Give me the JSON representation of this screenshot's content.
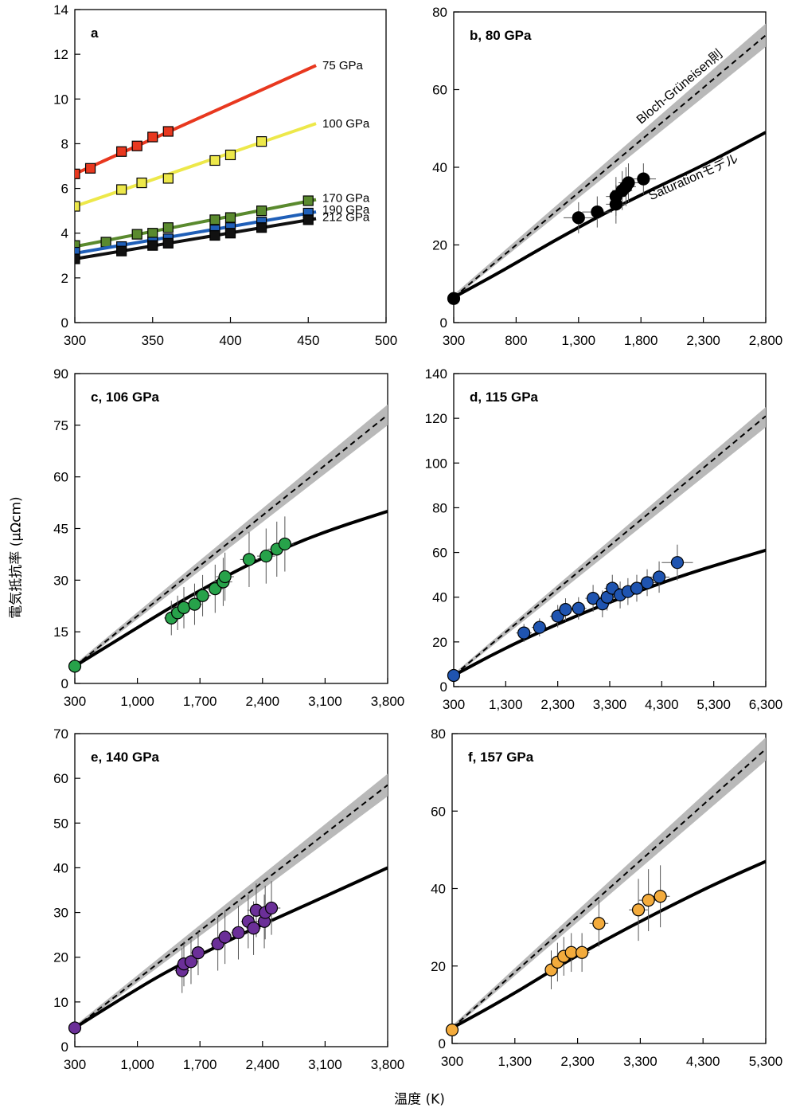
{
  "labels": {
    "y_axis": "電気抵抗率 (μΩcm)",
    "x_axis": "温度 (K)",
    "bloch_model": "Bloch-Grüneisen則",
    "saturation_model": "Saturationモデル"
  },
  "colors": {
    "p75": "#e8381f",
    "p100": "#ede84a",
    "p170": "#5a8a2e",
    "p190": "#1f5fb8",
    "p212": "#111111",
    "black": "#000000",
    "green": "#27a24a",
    "blue": "#1f54b0",
    "purple": "#6b2f98",
    "orange": "#f3ab3c",
    "band": "#b9b9b9"
  },
  "chart_data": [
    {
      "id": "a",
      "title": "a",
      "type": "scatter",
      "xlim": [
        300,
        500
      ],
      "ylim": [
        0,
        14
      ],
      "xticks": [
        "300",
        "350",
        "400",
        "450",
        "500"
      ],
      "yticks": [
        "0",
        "2",
        "4",
        "6",
        "8",
        "10",
        "12",
        "14"
      ],
      "series": [
        {
          "name": "75 GPa",
          "color": "p75",
          "marker": "square",
          "line": [
            [
              300,
              6.65
            ],
            [
              455,
              11.5
            ]
          ],
          "points": [
            [
              300,
              6.65
            ],
            [
              310,
              6.9
            ],
            [
              330,
              7.65
            ],
            [
              340,
              7.9
            ],
            [
              350,
              8.3
            ],
            [
              360,
              8.55
            ]
          ]
        },
        {
          "name": "100 GPa",
          "color": "p100",
          "marker": "square",
          "line": [
            [
              300,
              5.2
            ],
            [
              455,
              8.9
            ]
          ],
          "points": [
            [
              300,
              5.2
            ],
            [
              330,
              5.95
            ],
            [
              343,
              6.25
            ],
            [
              360,
              6.45
            ],
            [
              390,
              7.25
            ],
            [
              400,
              7.5
            ],
            [
              420,
              8.1
            ]
          ]
        },
        {
          "name": "170 GPa",
          "color": "p170",
          "marker": "square",
          "line": [
            [
              300,
              3.4
            ],
            [
              455,
              5.5
            ]
          ],
          "points": [
            [
              300,
              3.45
            ],
            [
              320,
              3.6
            ],
            [
              340,
              3.95
            ],
            [
              350,
              4.0
            ],
            [
              360,
              4.25
            ],
            [
              390,
              4.6
            ],
            [
              400,
              4.7
            ],
            [
              420,
              5.0
            ],
            [
              450,
              5.45
            ]
          ]
        },
        {
          "name": "190 GPa",
          "color": "p190",
          "marker": "square",
          "line": [
            [
              300,
              3.1
            ],
            [
              455,
              4.95
            ]
          ],
          "points": [
            [
              300,
              3.15
            ],
            [
              330,
              3.4
            ],
            [
              350,
              3.6
            ],
            [
              360,
              3.75
            ],
            [
              390,
              4.15
            ],
            [
              400,
              4.25
            ],
            [
              420,
              4.5
            ],
            [
              450,
              4.9
            ]
          ]
        },
        {
          "name": "212 GPa",
          "color": "p212",
          "marker": "square",
          "line": [
            [
              300,
              2.85
            ],
            [
              455,
              4.65
            ]
          ],
          "points": [
            [
              300,
              2.85
            ],
            [
              330,
              3.2
            ],
            [
              350,
              3.45
            ],
            [
              360,
              3.55
            ],
            [
              390,
              3.9
            ],
            [
              400,
              4.0
            ],
            [
              420,
              4.25
            ],
            [
              450,
              4.6
            ]
          ]
        }
      ]
    },
    {
      "id": "b",
      "title": "b, 80 GPa",
      "type": "scatter",
      "xlim": [
        300,
        2800
      ],
      "ylim": [
        0,
        80
      ],
      "xticks": [
        "300",
        "800",
        "1,300",
        "1,800",
        "2,300",
        "2,800"
      ],
      "yticks": [
        "0",
        "20",
        "40",
        "60",
        "80"
      ],
      "color": "black",
      "bloch": [
        [
          300,
          6.5
        ],
        [
          2800,
          74
        ]
      ],
      "band_upper": [
        [
          300,
          7.2
        ],
        [
          2800,
          77
        ]
      ],
      "band_lower": [
        [
          300,
          6.2
        ],
        [
          2800,
          71
        ]
      ],
      "saturation": [
        [
          300,
          6.5
        ],
        [
          700,
          13.5
        ],
        [
          1100,
          21
        ],
        [
          1500,
          28
        ],
        [
          1900,
          34.5
        ],
        [
          2300,
          40.5
        ],
        [
          2800,
          49
        ]
      ],
      "points": [
        {
          "x": 300,
          "y": 6.2,
          "ex": 0,
          "ey": 0
        },
        {
          "x": 1300,
          "y": 27,
          "ex": 120,
          "ey": 4
        },
        {
          "x": 1450,
          "y": 28.5,
          "ex": 120,
          "ey": 4
        },
        {
          "x": 1600,
          "y": 30.5,
          "ex": 80,
          "ey": 5
        },
        {
          "x": 1600,
          "y": 32.5,
          "ex": 80,
          "ey": 5
        },
        {
          "x": 1650,
          "y": 34,
          "ex": 80,
          "ey": 5
        },
        {
          "x": 1680,
          "y": 35,
          "ex": 80,
          "ey": 5
        },
        {
          "x": 1700,
          "y": 36,
          "ex": 80,
          "ey": 5
        },
        {
          "x": 1820,
          "y": 37,
          "ex": 100,
          "ey": 4
        }
      ]
    },
    {
      "id": "c",
      "title": "c, 106 GPa",
      "type": "scatter",
      "xlim": [
        300,
        3800
      ],
      "ylim": [
        0,
        90
      ],
      "xticks": [
        "300",
        "1,000",
        "1,700",
        "2,400",
        "3,100",
        "3,800"
      ],
      "yticks": [
        "0",
        "15",
        "30",
        "45",
        "60",
        "75",
        "90"
      ],
      "color": "green",
      "bloch": [
        [
          300,
          5
        ],
        [
          3800,
          78
        ]
      ],
      "band_upper": [
        [
          300,
          5.6
        ],
        [
          3800,
          81
        ]
      ],
      "band_lower": [
        [
          300,
          4.6
        ],
        [
          3800,
          75
        ]
      ],
      "saturation": [
        [
          300,
          5
        ],
        [
          800,
          13
        ],
        [
          1300,
          21
        ],
        [
          1700,
          27
        ],
        [
          2200,
          34
        ],
        [
          2700,
          40
        ],
        [
          3200,
          45
        ],
        [
          3800,
          50
        ]
      ],
      "points": [
        {
          "x": 300,
          "y": 5,
          "ex": 0,
          "ey": 0
        },
        {
          "x": 1380,
          "y": 19,
          "ex": 80,
          "ey": 5
        },
        {
          "x": 1450,
          "y": 20.5,
          "ex": 80,
          "ey": 5
        },
        {
          "x": 1520,
          "y": 22,
          "ex": 80,
          "ey": 6
        },
        {
          "x": 1640,
          "y": 23,
          "ex": 80,
          "ey": 6
        },
        {
          "x": 1730,
          "y": 25.5,
          "ex": 90,
          "ey": 6
        },
        {
          "x": 1870,
          "y": 27.5,
          "ex": 90,
          "ey": 7
        },
        {
          "x": 1960,
          "y": 29.5,
          "ex": 100,
          "ey": 7
        },
        {
          "x": 1980,
          "y": 31,
          "ex": 100,
          "ey": 7
        },
        {
          "x": 2250,
          "y": 36,
          "ex": 100,
          "ey": 8
        },
        {
          "x": 2440,
          "y": 37,
          "ex": 100,
          "ey": 8
        },
        {
          "x": 2560,
          "y": 39,
          "ex": 100,
          "ey": 8
        },
        {
          "x": 2650,
          "y": 40.5,
          "ex": 100,
          "ey": 8
        }
      ]
    },
    {
      "id": "d",
      "title": "d, 115 GPa",
      "type": "scatter",
      "xlim": [
        300,
        6300
      ],
      "ylim": [
        0,
        140
      ],
      "xticks": [
        "300",
        "1,300",
        "2,300",
        "3,300",
        "4,300",
        "5,300",
        "6,300"
      ],
      "yticks": [
        "0",
        "20",
        "40",
        "60",
        "80",
        "100",
        "120",
        "140"
      ],
      "color": "blue",
      "bloch": [
        [
          300,
          5
        ],
        [
          6300,
          121
        ]
      ],
      "band_upper": [
        [
          300,
          5.8
        ],
        [
          6300,
          125
        ]
      ],
      "band_lower": [
        [
          300,
          4.4
        ],
        [
          6300,
          116
        ]
      ],
      "saturation": [
        [
          300,
          5
        ],
        [
          1100,
          15
        ],
        [
          2000,
          25
        ],
        [
          3000,
          35
        ],
        [
          4000,
          44
        ],
        [
          5000,
          52
        ],
        [
          6300,
          61
        ]
      ],
      "points": [
        {
          "x": 300,
          "y": 5,
          "ex": 0,
          "ey": 0
        },
        {
          "x": 1650,
          "y": 24,
          "ex": 150,
          "ey": 4
        },
        {
          "x": 1950,
          "y": 26.5,
          "ex": 150,
          "ey": 4
        },
        {
          "x": 2300,
          "y": 31.5,
          "ex": 150,
          "ey": 5
        },
        {
          "x": 2450,
          "y": 34.5,
          "ex": 150,
          "ey": 5
        },
        {
          "x": 2700,
          "y": 35,
          "ex": 150,
          "ey": 5
        },
        {
          "x": 2980,
          "y": 39.5,
          "ex": 150,
          "ey": 6
        },
        {
          "x": 3160,
          "y": 37,
          "ex": 150,
          "ey": 6
        },
        {
          "x": 3250,
          "y": 40,
          "ex": 150,
          "ey": 6
        },
        {
          "x": 3350,
          "y": 44,
          "ex": 150,
          "ey": 6
        },
        {
          "x": 3500,
          "y": 41,
          "ex": 150,
          "ey": 6
        },
        {
          "x": 3650,
          "y": 42.5,
          "ex": 200,
          "ey": 6
        },
        {
          "x": 3820,
          "y": 44,
          "ex": 200,
          "ey": 6
        },
        {
          "x": 4020,
          "y": 46.5,
          "ex": 200,
          "ey": 6
        },
        {
          "x": 4250,
          "y": 49,
          "ex": 200,
          "ey": 7
        },
        {
          "x": 4600,
          "y": 55.5,
          "ex": 300,
          "ey": 8
        }
      ]
    },
    {
      "id": "e",
      "title": "e, 140 GPa",
      "type": "scatter",
      "xlim": [
        300,
        3800
      ],
      "ylim": [
        0,
        70
      ],
      "xticks": [
        "300",
        "1,000",
        "1,700",
        "2,400",
        "3,100",
        "3,800"
      ],
      "yticks": [
        "0",
        "10",
        "20",
        "30",
        "40",
        "50",
        "60",
        "70"
      ],
      "color": "purple",
      "bloch": [
        [
          300,
          4.2
        ],
        [
          3800,
          58.5
        ]
      ],
      "band_upper": [
        [
          300,
          4.7
        ],
        [
          3800,
          61
        ]
      ],
      "band_lower": [
        [
          300,
          3.9
        ],
        [
          3800,
          56
        ]
      ],
      "saturation": [
        [
          300,
          4.2
        ],
        [
          800,
          10.5
        ],
        [
          1300,
          16.5
        ],
        [
          1700,
          20.5
        ],
        [
          2200,
          25.5
        ],
        [
          2700,
          30
        ],
        [
          3200,
          34.5
        ],
        [
          3800,
          40
        ]
      ],
      "points": [
        {
          "x": 300,
          "y": 4.2,
          "ex": 0,
          "ey": 0
        },
        {
          "x": 1500,
          "y": 17,
          "ex": 80,
          "ey": 5
        },
        {
          "x": 1520,
          "y": 18.5,
          "ex": 80,
          "ey": 5
        },
        {
          "x": 1600,
          "y": 19,
          "ex": 80,
          "ey": 5
        },
        {
          "x": 1680,
          "y": 21,
          "ex": 80,
          "ey": 5
        },
        {
          "x": 1900,
          "y": 23,
          "ex": 80,
          "ey": 6
        },
        {
          "x": 1980,
          "y": 24.5,
          "ex": 80,
          "ey": 6
        },
        {
          "x": 2130,
          "y": 25.5,
          "ex": 80,
          "ey": 6
        },
        {
          "x": 2240,
          "y": 28,
          "ex": 80,
          "ey": 6
        },
        {
          "x": 2300,
          "y": 26.5,
          "ex": 80,
          "ey": 6
        },
        {
          "x": 2330,
          "y": 30.5,
          "ex": 100,
          "ey": 6
        },
        {
          "x": 2420,
          "y": 28,
          "ex": 100,
          "ey": 6
        },
        {
          "x": 2430,
          "y": 30,
          "ex": 100,
          "ey": 6
        },
        {
          "x": 2500,
          "y": 31,
          "ex": 100,
          "ey": 6
        }
      ]
    },
    {
      "id": "f",
      "title": "f, 157 GPa",
      "type": "scatter",
      "xlim": [
        300,
        5300
      ],
      "ylim": [
        0,
        80
      ],
      "xticks": [
        "300",
        "1,300",
        "2,300",
        "3,300",
        "4,300",
        "5,300"
      ],
      "yticks": [
        "0",
        "20",
        "40",
        "60",
        "80"
      ],
      "color": "orange",
      "bloch": [
        [
          300,
          4
        ],
        [
          5300,
          76
        ]
      ],
      "band_upper": [
        [
          300,
          4.6
        ],
        [
          5300,
          79
        ]
      ],
      "band_lower": [
        [
          300,
          3.6
        ],
        [
          5300,
          73
        ]
      ],
      "saturation": [
        [
          300,
          4
        ],
        [
          1200,
          12
        ],
        [
          2100,
          21
        ],
        [
          3000,
          29
        ],
        [
          3900,
          36.5
        ],
        [
          4600,
          42
        ],
        [
          5300,
          47
        ]
      ],
      "points": [
        {
          "x": 300,
          "y": 3.5,
          "ex": 0,
          "ey": 0
        },
        {
          "x": 1880,
          "y": 19,
          "ex": 100,
          "ey": 5
        },
        {
          "x": 1980,
          "y": 21,
          "ex": 100,
          "ey": 5
        },
        {
          "x": 2080,
          "y": 22.5,
          "ex": 100,
          "ey": 5
        },
        {
          "x": 2200,
          "y": 23.5,
          "ex": 100,
          "ey": 5
        },
        {
          "x": 2370,
          "y": 23.5,
          "ex": 120,
          "ey": 5
        },
        {
          "x": 2640,
          "y": 31,
          "ex": 150,
          "ey": 6
        },
        {
          "x": 3270,
          "y": 34.5,
          "ex": 150,
          "ey": 8
        },
        {
          "x": 3430,
          "y": 37,
          "ex": 150,
          "ey": 8
        },
        {
          "x": 3620,
          "y": 38,
          "ex": 150,
          "ey": 8
        }
      ]
    }
  ]
}
